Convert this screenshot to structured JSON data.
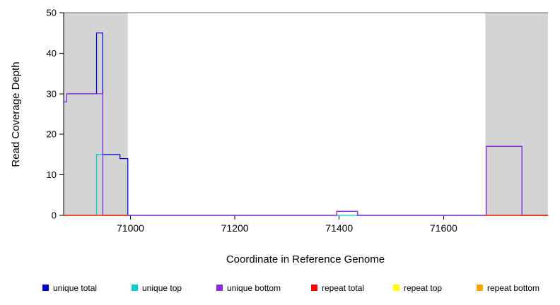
{
  "chart_data": {
    "type": "line",
    "subtype": "step-coverage-plot",
    "title": "",
    "xlabel": "Coordinate in Reference Genome",
    "ylabel": "Read Coverage Depth",
    "xlim": [
      70872,
      71800
    ],
    "ylim": [
      0,
      50
    ],
    "xticks": [
      71000,
      71200,
      71400,
      71600
    ],
    "yticks": [
      0,
      10,
      20,
      30,
      40,
      50
    ],
    "grid": false,
    "frame_top_color": "#707070",
    "axis_color": "#000000",
    "shaded_regions": [
      {
        "name": "repeat-region-left",
        "x0": 70872,
        "x1": 70995,
        "color": "#d4d4d4"
      },
      {
        "name": "repeat-region-right",
        "x0": 71680,
        "x1": 71800,
        "color": "#d4d4d4"
      }
    ],
    "series": [
      {
        "name": "unique total",
        "color": "#0000CC",
        "segments": [
          [
            [
              70872,
              28
            ],
            [
              70878,
              30
            ],
            [
              70935,
              45
            ],
            [
              70947,
              15
            ],
            [
              70980,
              14
            ],
            [
              70995,
              0
            ],
            [
              71395,
              1
            ],
            [
              71435,
              0
            ],
            [
              71682,
              17
            ],
            [
              71750,
              0
            ],
            [
              71800,
              0
            ]
          ]
        ]
      },
      {
        "name": "unique top",
        "color": "#00CCCC",
        "segments": [
          [
            [
              70872,
              0
            ],
            [
              70935,
              15
            ],
            [
              70947,
              0
            ],
            [
              71800,
              0
            ]
          ]
        ]
      },
      {
        "name": "unique bottom",
        "color": "#8A2BE2",
        "segments": [
          [
            [
              70872,
              28
            ],
            [
              70878,
              30
            ],
            [
              70947,
              0
            ],
            [
              71395,
              1
            ],
            [
              71435,
              0
            ],
            [
              71682,
              17
            ],
            [
              71750,
              0
            ],
            [
              71800,
              0
            ]
          ]
        ]
      },
      {
        "name": "repeat bottom",
        "color": "#FFA500",
        "segments": [
          [
            [
              70872,
              0
            ],
            [
              70995,
              0
            ]
          ],
          [
            [
              71680,
              0
            ],
            [
              71800,
              0
            ]
          ]
        ]
      },
      {
        "name": "repeat top",
        "color": "#FFFF00",
        "segments": [
          [
            [
              70872,
              0
            ],
            [
              70995,
              0
            ]
          ],
          [
            [
              71680,
              0
            ],
            [
              71800,
              0
            ]
          ]
        ]
      },
      {
        "name": "repeat total",
        "color": "#FF0000",
        "segments": [
          [
            [
              70872,
              0
            ],
            [
              70995,
              0
            ]
          ],
          [
            [
              71680,
              0
            ],
            [
              71800,
              0
            ]
          ]
        ]
      }
    ],
    "legend_position": "bottom",
    "legend": [
      {
        "label": "unique total",
        "color": "#0000CC"
      },
      {
        "label": "unique top",
        "color": "#00CCCC"
      },
      {
        "label": "unique bottom",
        "color": "#8A2BE2"
      },
      {
        "label": "repeat total",
        "color": "#FF0000"
      },
      {
        "label": "repeat top",
        "color": "#FFFF00"
      },
      {
        "label": "repeat bottom",
        "color": "#FFA500"
      }
    ]
  }
}
